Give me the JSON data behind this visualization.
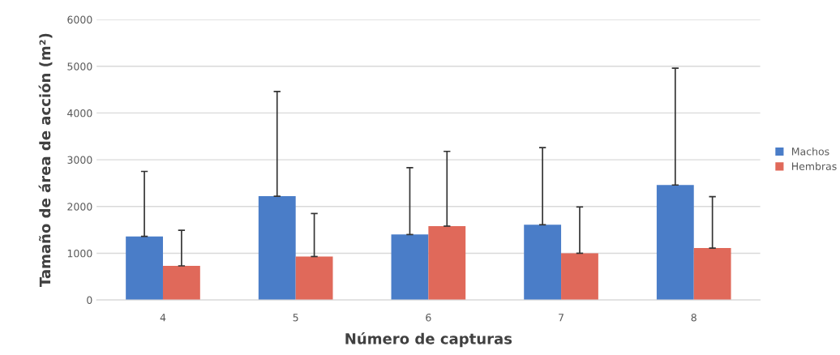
{
  "chart_data": {
    "type": "bar",
    "xlabel": "Número de capturas",
    "ylabel": "Tamaño de área de acción (m²)",
    "categories": [
      "4",
      "5",
      "6",
      "7",
      "8"
    ],
    "series": [
      {
        "name": "Machos",
        "color": "#4a7dc8",
        "values": [
          1360,
          2220,
          1400,
          1610,
          2460
        ],
        "errors": [
          [
            1360,
            2750
          ],
          [
            2220,
            4460
          ],
          [
            1400,
            2830
          ],
          [
            1610,
            3260
          ],
          [
            2460,
            4960
          ]
        ]
      },
      {
        "name": "Hembras",
        "color": "#e0695a",
        "values": [
          730,
          930,
          1580,
          1000,
          1110
        ],
        "errors": [
          [
            730,
            1490
          ],
          [
            930,
            1850
          ],
          [
            1580,
            3180
          ],
          [
            1000,
            1990
          ],
          [
            1110,
            2210
          ]
        ]
      }
    ],
    "ylim": [
      0,
      6000
    ],
    "yticks": [
      0,
      1000,
      2000,
      3000,
      4000,
      5000,
      6000
    ],
    "grid": "y",
    "legend": "right"
  }
}
